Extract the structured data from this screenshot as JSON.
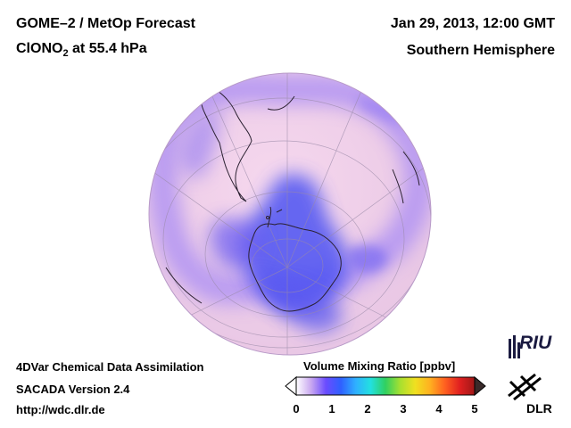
{
  "header": {
    "title_line1": "GOME–2 / MetOp Forecast",
    "title_line2_prefix": "ClONO",
    "title_line2_sub": "2",
    "title_line2_suffix": " at 55.4 hPa",
    "date": "Jan 29, 2013, 12:00 GMT",
    "hemisphere": "Southern Hemisphere"
  },
  "footer": {
    "line1": "4DVar Chemical Data Assimilation",
    "line2": "SACADA Version 2.4",
    "line3": "http://wdc.dlr.de"
  },
  "colorbar": {
    "title": "Volume Mixing Ratio [ppbv]",
    "ticks": [
      "0",
      "1",
      "2",
      "3",
      "4",
      "5"
    ],
    "min": 0,
    "max": 5,
    "colors": [
      "#ffffff",
      "#c9a8f0",
      "#6a4cff",
      "#2f60ff",
      "#2fb0ff",
      "#22e0e0",
      "#30d060",
      "#a8e030",
      "#f0e020",
      "#ffb020",
      "#ff6020",
      "#e02020",
      "#a01818"
    ]
  },
  "map": {
    "projection": "orthographic, south pole centered",
    "globe_color": "#f0d0e8",
    "low_color": "#5a5ef0",
    "high_color": "#f4c8ea"
  },
  "logos": {
    "riu_text": "RIU",
    "dlr_text": "DLR"
  }
}
